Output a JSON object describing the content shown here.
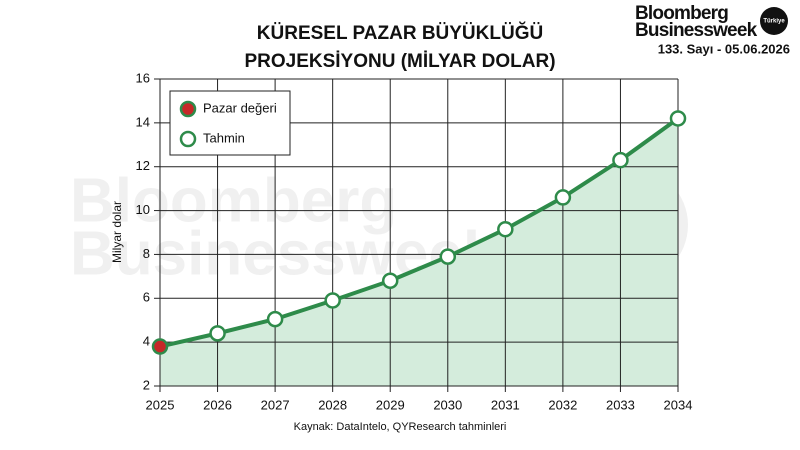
{
  "header": {
    "brand_line1": "Bloomberg",
    "brand_line2": "Businessweek",
    "badge": "Türkiye",
    "issue": "133. Sayı - 05.06.2026"
  },
  "chart_data": {
    "type": "line",
    "title_line1": "KÜRESEL PAZAR BÜYÜKLÜĞÜ",
    "title_line2": "PROJEKSİYONU (MİLYAR DOLAR)",
    "y_label": "Milyar dolar",
    "source": "Kaynak: DataIntelo, QYResearch tahminleri",
    "x": [
      2025,
      2026,
      2027,
      2028,
      2029,
      2030,
      2031,
      2032,
      2033,
      2034
    ],
    "series": [
      {
        "name": "Pazar değeri",
        "color": "#c62828",
        "values": [
          3.8,
          null,
          null,
          null,
          null,
          null,
          null,
          null,
          null,
          null
        ]
      },
      {
        "name": "Tahmin",
        "color": "#ffffff",
        "values": [
          null,
          4.4,
          5.05,
          5.9,
          6.8,
          7.9,
          9.15,
          10.6,
          12.3,
          14.2
        ]
      }
    ],
    "line_color": "#2e8b4a",
    "area_color": "#d4ecdc",
    "xlim": [
      2025,
      2034
    ],
    "xticks": [
      2025,
      2026,
      2027,
      2028,
      2029,
      2030,
      2031,
      2032,
      2033,
      2034
    ],
    "ylim": [
      2,
      16
    ],
    "yticks": [
      2,
      4,
      6,
      8,
      10,
      12,
      14,
      16
    ],
    "grid": true,
    "legend": "top-left"
  }
}
